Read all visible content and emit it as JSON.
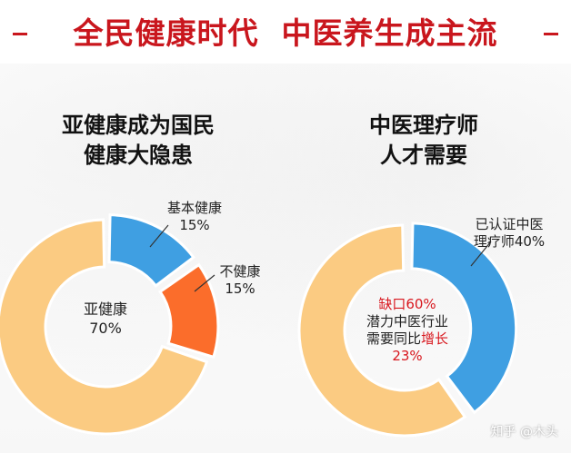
{
  "title": "全民健康时代  中医养生成主流",
  "colors": {
    "title_red": "#c9161d",
    "peach": "#fbcb82",
    "blue": "#3f9fe2",
    "orange": "#fb6d2b",
    "highlight_red": "#d8171e"
  },
  "chart_data": [
    {
      "type": "pie",
      "variant": "donut",
      "title": [
        "亚健康成为国民",
        "健康大隐患"
      ],
      "slices": [
        {
          "label": "基本健康",
          "value": 15,
          "display": "15%",
          "color": "#3f9fe2"
        },
        {
          "label": "不健康",
          "value": 15,
          "display": "15%",
          "color": "#fb6d2b"
        },
        {
          "label": "亚健康",
          "value": 70,
          "display": "70%",
          "color": "#fbcb82"
        }
      ]
    },
    {
      "type": "pie",
      "variant": "donut",
      "title": [
        "中医理疗师",
        "人才需要"
      ],
      "slices": [
        {
          "label": "已认证中医理疗师",
          "label_lines": [
            "已认证中医",
            "理疗师40%"
          ],
          "value": 40,
          "color": "#3f9fe2"
        },
        {
          "label": "缺口",
          "value": 60,
          "display": "60%",
          "color": "#fbcb82"
        }
      ],
      "center_text": {
        "line1": "缺口60%",
        "line2": "潜力中医行业",
        "line3_prefix": "需要同比",
        "line3_highlight": "增长",
        "line4": "23%"
      }
    }
  ],
  "watermark": "知乎 @木头"
}
